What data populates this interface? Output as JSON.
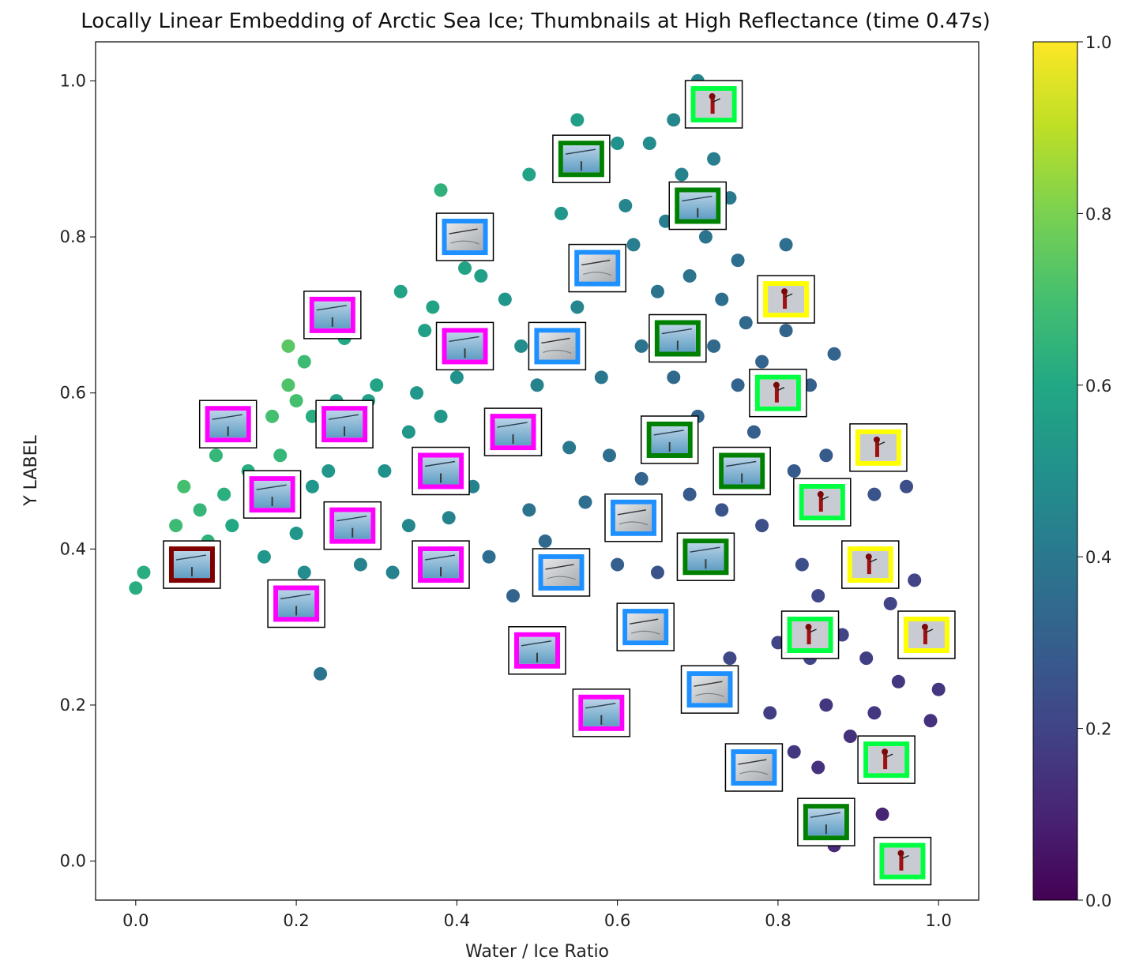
{
  "chart_data": {
    "type": "scatter",
    "title": "Locally Linear Embedding of Arctic Sea Ice; Thumbnails at High Reflectance (time 0.47s)",
    "xlabel": "Water / Ice Ratio",
    "ylabel": "Y LABEL",
    "xlim": [
      -0.05,
      1.05
    ],
    "ylim": [
      -0.05,
      1.05
    ],
    "xticks": [
      "0.0",
      "0.2",
      "0.4",
      "0.6",
      "0.8",
      "1.0"
    ],
    "xtick_values": [
      0.0,
      0.2,
      0.4,
      0.6,
      0.8,
      1.0
    ],
    "yticks": [
      "0.0",
      "0.2",
      "0.4",
      "0.6",
      "0.8",
      "1.0"
    ],
    "ytick_values": [
      0.0,
      0.2,
      0.4,
      0.6,
      0.8,
      1.0
    ],
    "grid": false,
    "colormap": "viridis",
    "colorbar": {
      "range": [
        0.0,
        1.0
      ],
      "ticks": [
        "0.0",
        "0.2",
        "0.4",
        "0.6",
        "0.8",
        "1.0"
      ],
      "tick_values": [
        0.0,
        0.2,
        0.4,
        0.6,
        0.8,
        1.0
      ],
      "stops": [
        "#440154",
        "#482475",
        "#414487",
        "#355f8d",
        "#2a788e",
        "#21918c",
        "#22a884",
        "#44bf70",
        "#7ad151",
        "#bddf26",
        "#fde725"
      ]
    },
    "points": [
      [
        0.0,
        0.35,
        0.62
      ],
      [
        0.01,
        0.37,
        0.62
      ],
      [
        0.05,
        0.43,
        0.68
      ],
      [
        0.06,
        0.48,
        0.7
      ],
      [
        0.08,
        0.45,
        0.66
      ],
      [
        0.09,
        0.41,
        0.64
      ],
      [
        0.1,
        0.52,
        0.66
      ],
      [
        0.11,
        0.47,
        0.63
      ],
      [
        0.12,
        0.43,
        0.6
      ],
      [
        0.13,
        0.55,
        0.64
      ],
      [
        0.14,
        0.5,
        0.62
      ],
      [
        0.15,
        0.45,
        0.57
      ],
      [
        0.16,
        0.39,
        0.52
      ],
      [
        0.17,
        0.57,
        0.7
      ],
      [
        0.18,
        0.52,
        0.66
      ],
      [
        0.18,
        0.46,
        0.58
      ],
      [
        0.19,
        0.66,
        0.74
      ],
      [
        0.19,
        0.61,
        0.72
      ],
      [
        0.2,
        0.59,
        0.7
      ],
      [
        0.2,
        0.42,
        0.52
      ],
      [
        0.21,
        0.64,
        0.68
      ],
      [
        0.21,
        0.37,
        0.48
      ],
      [
        0.22,
        0.57,
        0.62
      ],
      [
        0.22,
        0.48,
        0.52
      ],
      [
        0.23,
        0.24,
        0.38
      ],
      [
        0.24,
        0.5,
        0.52
      ],
      [
        0.25,
        0.59,
        0.58
      ],
      [
        0.26,
        0.67,
        0.6
      ],
      [
        0.27,
        0.45,
        0.48
      ],
      [
        0.28,
        0.38,
        0.44
      ],
      [
        0.29,
        0.59,
        0.56
      ],
      [
        0.3,
        0.61,
        0.58
      ],
      [
        0.31,
        0.5,
        0.5
      ],
      [
        0.32,
        0.37,
        0.44
      ],
      [
        0.33,
        0.73,
        0.58
      ],
      [
        0.34,
        0.55,
        0.52
      ],
      [
        0.34,
        0.43,
        0.46
      ],
      [
        0.35,
        0.6,
        0.52
      ],
      [
        0.36,
        0.68,
        0.56
      ],
      [
        0.37,
        0.71,
        0.58
      ],
      [
        0.38,
        0.86,
        0.64
      ],
      [
        0.38,
        0.57,
        0.52
      ],
      [
        0.39,
        0.44,
        0.44
      ],
      [
        0.4,
        0.62,
        0.5
      ],
      [
        0.41,
        0.76,
        0.58
      ],
      [
        0.42,
        0.48,
        0.44
      ],
      [
        0.43,
        0.75,
        0.56
      ],
      [
        0.44,
        0.39,
        0.36
      ],
      [
        0.45,
        0.56,
        0.46
      ],
      [
        0.46,
        0.72,
        0.52
      ],
      [
        0.47,
        0.34,
        0.32
      ],
      [
        0.48,
        0.66,
        0.48
      ],
      [
        0.49,
        0.88,
        0.58
      ],
      [
        0.49,
        0.45,
        0.38
      ],
      [
        0.5,
        0.61,
        0.44
      ],
      [
        0.51,
        0.41,
        0.34
      ],
      [
        0.52,
        0.64,
        0.42
      ],
      [
        0.53,
        0.83,
        0.52
      ],
      [
        0.54,
        0.53,
        0.4
      ],
      [
        0.55,
        0.95,
        0.56
      ],
      [
        0.55,
        0.71,
        0.46
      ],
      [
        0.56,
        0.46,
        0.36
      ],
      [
        0.57,
        0.74,
        0.44
      ],
      [
        0.58,
        0.62,
        0.4
      ],
      [
        0.59,
        0.52,
        0.36
      ],
      [
        0.6,
        0.92,
        0.5
      ],
      [
        0.6,
        0.38,
        0.3
      ],
      [
        0.61,
        0.84,
        0.46
      ],
      [
        0.62,
        0.79,
        0.42
      ],
      [
        0.63,
        0.66,
        0.38
      ],
      [
        0.63,
        0.49,
        0.32
      ],
      [
        0.64,
        0.92,
        0.48
      ],
      [
        0.65,
        0.73,
        0.38
      ],
      [
        0.65,
        0.37,
        0.26
      ],
      [
        0.66,
        0.82,
        0.42
      ],
      [
        0.67,
        0.95,
        0.46
      ],
      [
        0.67,
        0.62,
        0.34
      ],
      [
        0.68,
        0.88,
        0.44
      ],
      [
        0.69,
        0.75,
        0.38
      ],
      [
        0.69,
        0.47,
        0.28
      ],
      [
        0.7,
        1.0,
        0.46
      ],
      [
        0.7,
        0.57,
        0.32
      ],
      [
        0.71,
        0.8,
        0.38
      ],
      [
        0.72,
        0.9,
        0.42
      ],
      [
        0.72,
        0.66,
        0.34
      ],
      [
        0.73,
        0.72,
        0.36
      ],
      [
        0.73,
        0.45,
        0.26
      ],
      [
        0.74,
        0.85,
        0.4
      ],
      [
        0.74,
        0.26,
        0.22
      ],
      [
        0.75,
        0.61,
        0.32
      ],
      [
        0.75,
        0.77,
        0.36
      ],
      [
        0.76,
        0.69,
        0.34
      ],
      [
        0.77,
        0.55,
        0.3
      ],
      [
        0.78,
        0.64,
        0.32
      ],
      [
        0.78,
        0.43,
        0.24
      ],
      [
        0.79,
        0.72,
        0.34
      ],
      [
        0.79,
        0.19,
        0.18
      ],
      [
        0.8,
        0.58,
        0.3
      ],
      [
        0.8,
        0.28,
        0.2
      ],
      [
        0.81,
        0.79,
        0.36
      ],
      [
        0.81,
        0.68,
        0.32
      ],
      [
        0.82,
        0.14,
        0.16
      ],
      [
        0.82,
        0.5,
        0.28
      ],
      [
        0.83,
        0.38,
        0.24
      ],
      [
        0.84,
        0.26,
        0.2
      ],
      [
        0.84,
        0.61,
        0.3
      ],
      [
        0.85,
        0.12,
        0.14
      ],
      [
        0.85,
        0.34,
        0.22
      ],
      [
        0.86,
        0.52,
        0.28
      ],
      [
        0.86,
        0.2,
        0.16
      ],
      [
        0.87,
        0.65,
        0.32
      ],
      [
        0.87,
        0.02,
        0.12
      ],
      [
        0.88,
        0.44,
        0.26
      ],
      [
        0.88,
        0.29,
        0.2
      ],
      [
        0.89,
        0.16,
        0.14
      ],
      [
        0.9,
        0.55,
        0.28
      ],
      [
        0.9,
        0.38,
        0.24
      ],
      [
        0.91,
        0.26,
        0.18
      ],
      [
        0.92,
        0.19,
        0.16
      ],
      [
        0.92,
        0.47,
        0.26
      ],
      [
        0.93,
        0.06,
        0.1
      ],
      [
        0.94,
        0.33,
        0.2
      ],
      [
        0.95,
        0.23,
        0.16
      ],
      [
        0.96,
        0.48,
        0.24
      ],
      [
        0.97,
        0.36,
        0.2
      ],
      [
        0.98,
        0.27,
        0.18
      ],
      [
        0.99,
        0.18,
        0.14
      ],
      [
        1.0,
        0.22,
        0.16
      ]
    ],
    "thumbnails": [
      {
        "x": 0.07,
        "y": 0.38,
        "frame": "#800000",
        "image": "sea-ice"
      },
      {
        "x": 0.115,
        "y": 0.56,
        "frame": "#ff00ff",
        "image": "sea-ice"
      },
      {
        "x": 0.17,
        "y": 0.47,
        "frame": "#ff00ff",
        "image": "sea-ice"
      },
      {
        "x": 0.2,
        "y": 0.33,
        "frame": "#ff00ff",
        "image": "sea-ice"
      },
      {
        "x": 0.245,
        "y": 0.7,
        "frame": "#ff00ff",
        "image": "sea-ice"
      },
      {
        "x": 0.26,
        "y": 0.56,
        "frame": "#ff00ff",
        "image": "sea-ice"
      },
      {
        "x": 0.27,
        "y": 0.43,
        "frame": "#ff00ff",
        "image": "sea-ice"
      },
      {
        "x": 0.38,
        "y": 0.5,
        "frame": "#ff00ff",
        "image": "sea-ice"
      },
      {
        "x": 0.38,
        "y": 0.38,
        "frame": "#ff00ff",
        "image": "sea-ice"
      },
      {
        "x": 0.41,
        "y": 0.8,
        "frame": "#1e90ff",
        "image": "ice-floe"
      },
      {
        "x": 0.41,
        "y": 0.66,
        "frame": "#ff00ff",
        "image": "sea-ice"
      },
      {
        "x": 0.47,
        "y": 0.55,
        "frame": "#ff00ff",
        "image": "sea-ice"
      },
      {
        "x": 0.5,
        "y": 0.27,
        "frame": "#ff00ff",
        "image": "sea-ice"
      },
      {
        "x": 0.525,
        "y": 0.66,
        "frame": "#1e90ff",
        "image": "ice-floe"
      },
      {
        "x": 0.53,
        "y": 0.37,
        "frame": "#1e90ff",
        "image": "ice-floe"
      },
      {
        "x": 0.555,
        "y": 0.9,
        "frame": "#008000",
        "image": "sea-ice"
      },
      {
        "x": 0.58,
        "y": 0.19,
        "frame": "#ff00ff",
        "image": "sea-ice"
      },
      {
        "x": 0.575,
        "y": 0.76,
        "frame": "#1e90ff",
        "image": "ice-floe"
      },
      {
        "x": 0.62,
        "y": 0.44,
        "frame": "#1e90ff",
        "image": "ice-floe"
      },
      {
        "x": 0.635,
        "y": 0.3,
        "frame": "#1e90ff",
        "image": "ice-floe"
      },
      {
        "x": 0.665,
        "y": 0.54,
        "frame": "#008000",
        "image": "sea-ice"
      },
      {
        "x": 0.675,
        "y": 0.67,
        "frame": "#008000",
        "image": "sea-ice"
      },
      {
        "x": 0.7,
        "y": 0.84,
        "frame": "#008000",
        "image": "sea-ice"
      },
      {
        "x": 0.71,
        "y": 0.39,
        "frame": "#008000",
        "image": "sea-ice"
      },
      {
        "x": 0.715,
        "y": 0.22,
        "frame": "#1e90ff",
        "image": "ice-floe"
      },
      {
        "x": 0.72,
        "y": 0.97,
        "frame": "#00ff40",
        "image": "polar-bear"
      },
      {
        "x": 0.755,
        "y": 0.5,
        "frame": "#008000",
        "image": "sea-ice"
      },
      {
        "x": 0.77,
        "y": 0.12,
        "frame": "#1e90ff",
        "image": "ice-floe"
      },
      {
        "x": 0.8,
        "y": 0.6,
        "frame": "#00ff40",
        "image": "polar-bear"
      },
      {
        "x": 0.81,
        "y": 0.72,
        "frame": "#ffff00",
        "image": "polar-bear"
      },
      {
        "x": 0.84,
        "y": 0.29,
        "frame": "#00ff40",
        "image": "polar-bear"
      },
      {
        "x": 0.855,
        "y": 0.46,
        "frame": "#00ff40",
        "image": "polar-bear"
      },
      {
        "x": 0.86,
        "y": 0.05,
        "frame": "#008000",
        "image": "sea-ice"
      },
      {
        "x": 0.915,
        "y": 0.38,
        "frame": "#ffff00",
        "image": "polar-bear"
      },
      {
        "x": 0.925,
        "y": 0.53,
        "frame": "#ffff00",
        "image": "polar-bear"
      },
      {
        "x": 0.935,
        "y": 0.13,
        "frame": "#00ff40",
        "image": "polar-bear"
      },
      {
        "x": 0.955,
        "y": 0.0,
        "frame": "#00ff40",
        "image": "polar-bear"
      },
      {
        "x": 0.985,
        "y": 0.29,
        "frame": "#ffff00",
        "image": "polar-bear"
      }
    ]
  }
}
